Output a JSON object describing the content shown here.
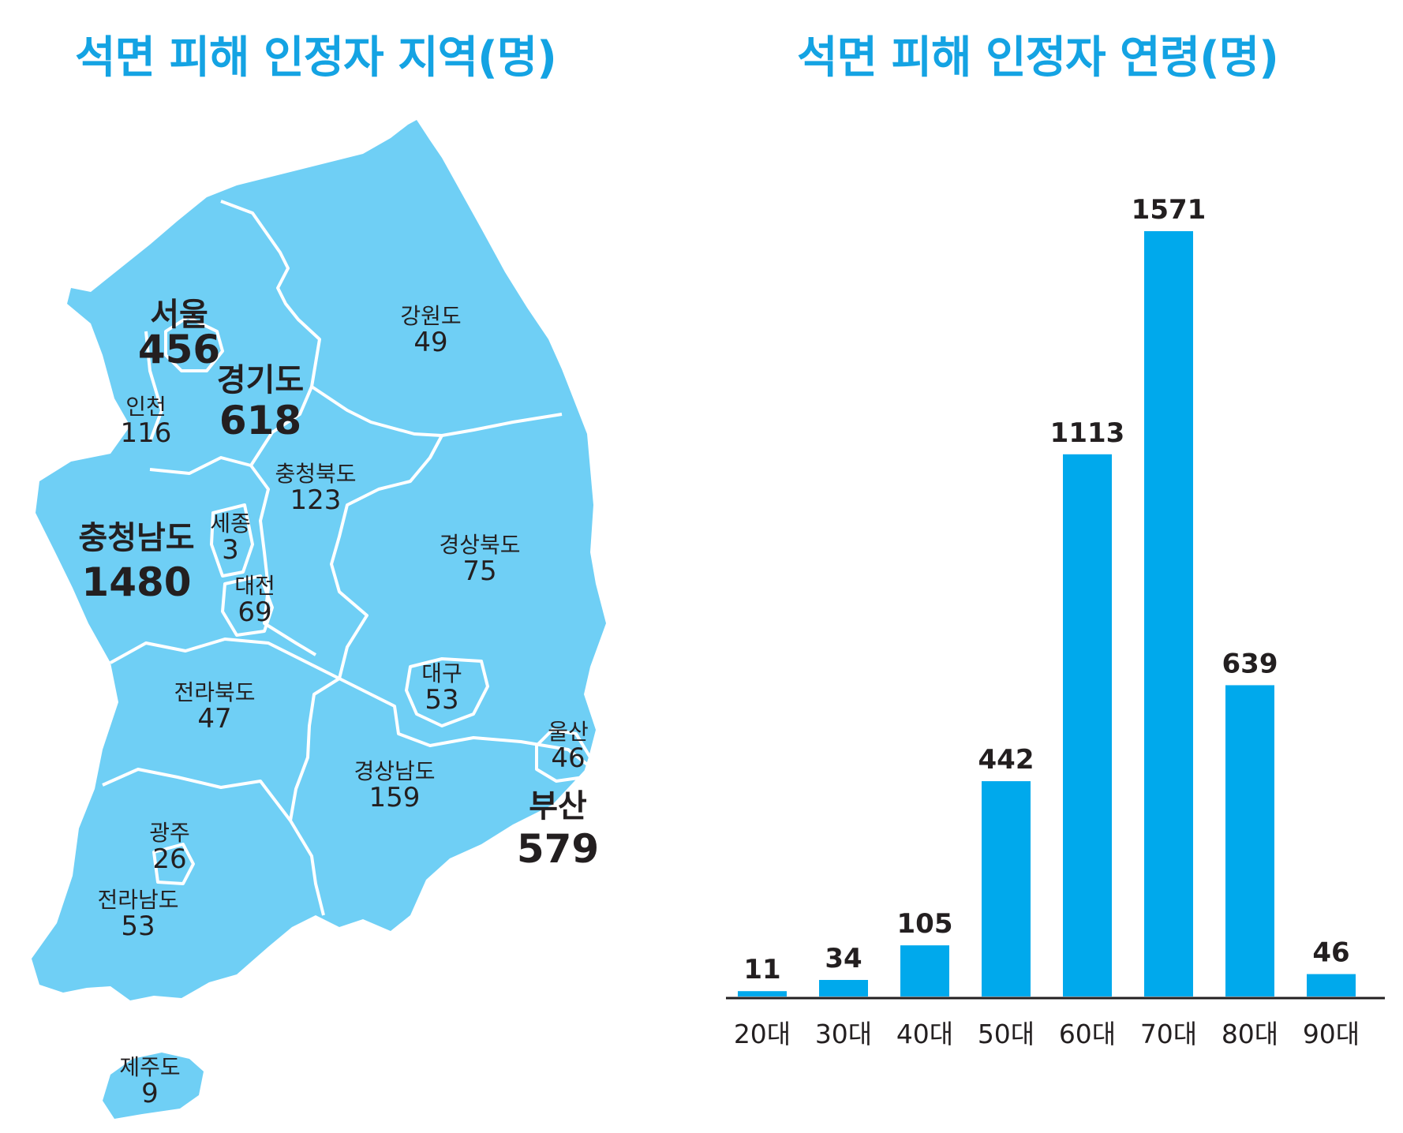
{
  "titles": {
    "map": "석면 피해 인정자 지역(명)",
    "bar": "석면 피해 인정자 연령(명)"
  },
  "colors": {
    "title": "#14a3e3",
    "map_fill": "#6fcff5",
    "bar": "#00a9ec",
    "text": "#231f20"
  },
  "chart_data": [
    {
      "type": "map",
      "title": "석면 피해 인정자 지역(명)",
      "regions": [
        {
          "name": "서울",
          "value": 456
        },
        {
          "name": "경기도",
          "value": 618
        },
        {
          "name": "인천",
          "value": 116
        },
        {
          "name": "강원도",
          "value": 49
        },
        {
          "name": "충청북도",
          "value": 123
        },
        {
          "name": "충청남도",
          "value": 1480
        },
        {
          "name": "세종",
          "value": 3
        },
        {
          "name": "대전",
          "value": 69
        },
        {
          "name": "경상북도",
          "value": 75
        },
        {
          "name": "대구",
          "value": 53
        },
        {
          "name": "전라북도",
          "value": 47
        },
        {
          "name": "울산",
          "value": 46
        },
        {
          "name": "경상남도",
          "value": 159
        },
        {
          "name": "부산",
          "value": 579
        },
        {
          "name": "광주",
          "value": 26
        },
        {
          "name": "전라남도",
          "value": 53
        },
        {
          "name": "제주도",
          "value": 9
        }
      ]
    },
    {
      "type": "bar",
      "title": "석면 피해 인정자 연령(명)",
      "categories": [
        "20대",
        "30대",
        "40대",
        "50대",
        "60대",
        "70대",
        "80대",
        "90대"
      ],
      "values": [
        11,
        34,
        105,
        442,
        1113,
        1571,
        639,
        46
      ],
      "ylim": [
        0,
        1571
      ]
    }
  ]
}
